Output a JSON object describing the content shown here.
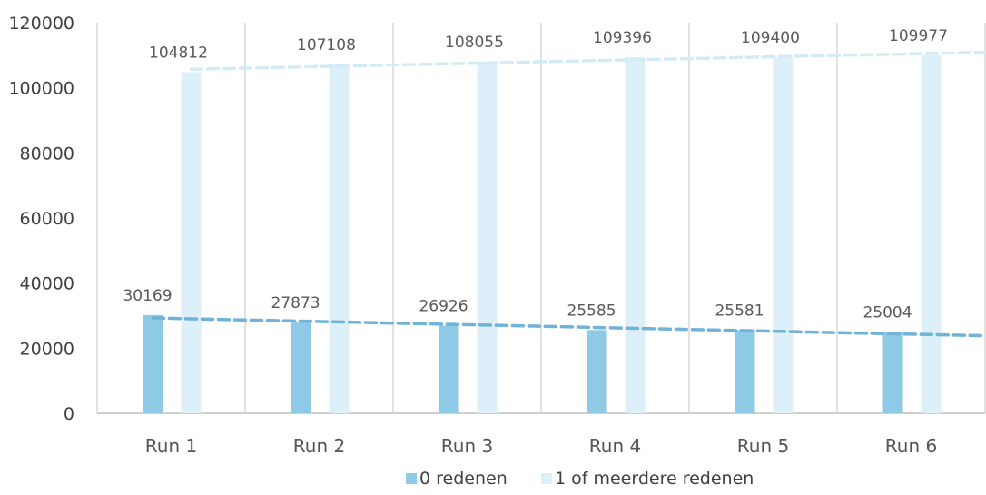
{
  "chart_data": {
    "type": "bar",
    "title": "",
    "xlabel": "",
    "ylabel": "",
    "categories": [
      "Run 1",
      "Run 2",
      "Run 3",
      "Run 4",
      "Run 5",
      "Run 6"
    ],
    "ylim": [
      0,
      120000
    ],
    "yticks": [
      "0",
      "20000",
      "40000",
      "60000",
      "80000",
      "100000",
      "120000"
    ],
    "series": [
      {
        "name": "0 redenen",
        "values": [
          30169,
          27873,
          26926,
          25585,
          25581,
          25004
        ],
        "color": "#8ecae6"
      },
      {
        "name": "1 of meerdere redenen",
        "values": [
          104812,
          107108,
          108055,
          109396,
          109400,
          109977
        ],
        "color": "#ddeff8"
      }
    ],
    "trendlines": true,
    "trendline_colors": [
      "#6fb3d8",
      "#d2ebf6"
    ],
    "grid": "vertical category separators",
    "legend_position": "bottom"
  }
}
